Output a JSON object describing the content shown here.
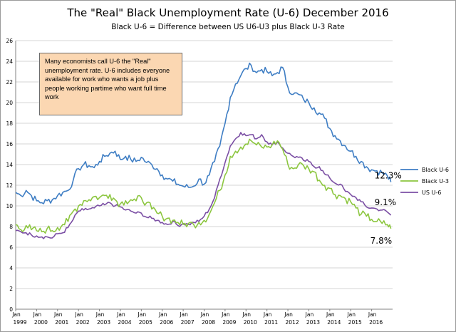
{
  "chart_data": {
    "type": "line",
    "title": "The \"Real\" Black Unemployment Rate (U-6) December 2016",
    "subtitle": "Black U-6  = Difference between US U6-U3 plus Black U-3 Rate",
    "annotation": "Many economists call U-6 the \"Real\" unemployment rate. U-6 includes everyone available for work who wants a job plus people working partime who want full time work",
    "ylim": [
      0,
      26
    ],
    "y_ticks": [
      0,
      2,
      4,
      6,
      8,
      10,
      12,
      14,
      16,
      18,
      20,
      22,
      24,
      26
    ],
    "x_range": [
      1999,
      2017
    ],
    "x_ticks": [
      {
        "month": "Jan",
        "year": "1999"
      },
      {
        "month": "Jan",
        "year": "2000"
      },
      {
        "month": "Jan",
        "year": "2001"
      },
      {
        "month": "Jan",
        "year": "2002"
      },
      {
        "month": "Jan",
        "year": "2003"
      },
      {
        "month": "Jan",
        "year": "2004"
      },
      {
        "month": "Jan",
        "year": "2005"
      },
      {
        "month": "Jan",
        "year": "2006"
      },
      {
        "month": "Jan",
        "year": "2007"
      },
      {
        "month": "Jan",
        "year": "2008"
      },
      {
        "month": "Jan",
        "year": "2009"
      },
      {
        "month": "Jan",
        "year": "2010"
      },
      {
        "month": "Jan",
        "year": "2011"
      },
      {
        "month": "Jan",
        "year": "2012"
      },
      {
        "month": "Jan",
        "year": "2013"
      },
      {
        "month": "Jan",
        "year": "2014"
      },
      {
        "month": "Jan",
        "year": "2015"
      },
      {
        "month": "Jan",
        "year": "2016"
      }
    ],
    "grid": true,
    "legend_position": "right",
    "series": [
      {
        "name": "Black U-6",
        "color": "#3f7ec4",
        "end_label": "12.3%",
        "x": [
          1999.0,
          1999.25,
          1999.5,
          1999.75,
          2000.0,
          2000.25,
          2000.5,
          2000.75,
          2001.0,
          2001.25,
          2001.5,
          2001.75,
          2002.0,
          2002.25,
          2002.5,
          2002.75,
          2003.0,
          2003.25,
          2003.5,
          2003.75,
          2004.0,
          2004.25,
          2004.5,
          2004.75,
          2005.0,
          2005.25,
          2005.5,
          2005.75,
          2006.0,
          2006.25,
          2006.5,
          2006.75,
          2007.0,
          2007.25,
          2007.5,
          2007.75,
          2008.0,
          2008.25,
          2008.5,
          2008.75,
          2009.0,
          2009.25,
          2009.5,
          2009.75,
          2010.0,
          2010.25,
          2010.5,
          2010.75,
          2011.0,
          2011.25,
          2011.5,
          2011.75,
          2012.0,
          2012.25,
          2012.5,
          2012.75,
          2013.0,
          2013.25,
          2013.5,
          2013.75,
          2014.0,
          2014.25,
          2014.5,
          2014.75,
          2015.0,
          2015.25,
          2015.5,
          2015.75,
          2016.0,
          2016.25,
          2016.5,
          2016.75,
          2016.92
        ],
        "y": [
          11.3,
          11.0,
          11.5,
          11.0,
          10.5,
          10.3,
          10.5,
          10.6,
          11.0,
          11.3,
          11.5,
          12.5,
          13.6,
          14.0,
          13.9,
          13.7,
          14.3,
          14.8,
          15.1,
          15.3,
          14.5,
          14.8,
          14.5,
          14.3,
          14.7,
          14.2,
          14.0,
          13.6,
          13.0,
          12.6,
          12.4,
          12.1,
          11.9,
          11.8,
          11.9,
          12.6,
          12.1,
          13.0,
          14.3,
          15.8,
          18.0,
          20.5,
          21.8,
          22.6,
          23.3,
          23.6,
          22.9,
          23.2,
          23.0,
          22.6,
          22.9,
          23.4,
          21.5,
          20.8,
          20.8,
          20.3,
          20.0,
          19.5,
          19.0,
          18.5,
          17.5,
          16.8,
          16.3,
          15.8,
          15.3,
          14.8,
          14.3,
          13.8,
          13.5,
          13.4,
          13.2,
          12.9,
          12.3
        ]
      },
      {
        "name": "Black U-3",
        "color": "#8cc63f",
        "end_label": "7.8%",
        "x": [
          1999.0,
          1999.25,
          1999.5,
          1999.75,
          2000.0,
          2000.25,
          2000.5,
          2000.75,
          2001.0,
          2001.25,
          2001.5,
          2001.75,
          2002.0,
          2002.25,
          2002.5,
          2002.75,
          2003.0,
          2003.25,
          2003.5,
          2003.75,
          2004.0,
          2004.25,
          2004.5,
          2004.75,
          2005.0,
          2005.25,
          2005.5,
          2005.75,
          2006.0,
          2006.25,
          2006.5,
          2006.75,
          2007.0,
          2007.25,
          2007.5,
          2007.75,
          2008.0,
          2008.25,
          2008.5,
          2008.75,
          2009.0,
          2009.25,
          2009.5,
          2009.75,
          2010.0,
          2010.25,
          2010.5,
          2010.75,
          2011.0,
          2011.25,
          2011.5,
          2011.75,
          2012.0,
          2012.25,
          2012.5,
          2012.75,
          2013.0,
          2013.25,
          2013.5,
          2013.75,
          2014.0,
          2014.25,
          2014.5,
          2014.75,
          2015.0,
          2015.25,
          2015.5,
          2015.75,
          2016.0,
          2016.25,
          2016.5,
          2016.75,
          2016.92
        ],
        "y": [
          8.2,
          7.7,
          8.1,
          7.7,
          7.6,
          7.5,
          7.8,
          7.6,
          7.9,
          8.2,
          8.5,
          9.5,
          10.0,
          10.5,
          10.6,
          10.9,
          10.8,
          11.0,
          11.1,
          10.6,
          10.2,
          10.5,
          10.6,
          10.5,
          10.8,
          10.3,
          9.7,
          9.3,
          9.0,
          8.8,
          8.6,
          8.4,
          8.2,
          8.3,
          8.2,
          8.4,
          8.6,
          9.2,
          10.3,
          11.5,
          13.0,
          14.8,
          15.3,
          15.7,
          16.0,
          16.3,
          15.9,
          15.7,
          15.7,
          15.9,
          16.3,
          15.5,
          14.0,
          13.6,
          14.0,
          13.9,
          13.6,
          13.3,
          12.5,
          12.0,
          11.7,
          11.1,
          11.0,
          10.7,
          10.4,
          9.8,
          9.2,
          9.0,
          8.7,
          8.5,
          8.3,
          8.2,
          7.8
        ]
      },
      {
        "name": "US U-6",
        "color": "#7b4fa4",
        "end_label": "9.1%",
        "x": [
          1999.0,
          1999.25,
          1999.5,
          1999.75,
          2000.0,
          2000.25,
          2000.5,
          2000.75,
          2001.0,
          2001.25,
          2001.5,
          2001.75,
          2002.0,
          2002.25,
          2002.5,
          2002.75,
          2003.0,
          2003.25,
          2003.5,
          2003.75,
          2004.0,
          2004.25,
          2004.5,
          2004.75,
          2005.0,
          2005.25,
          2005.5,
          2005.75,
          2006.0,
          2006.25,
          2006.5,
          2006.75,
          2007.0,
          2007.25,
          2007.5,
          2007.75,
          2008.0,
          2008.25,
          2008.5,
          2008.75,
          2009.0,
          2009.25,
          2009.5,
          2009.75,
          2010.0,
          2010.25,
          2010.5,
          2010.75,
          2011.0,
          2011.25,
          2011.5,
          2011.75,
          2012.0,
          2012.25,
          2012.5,
          2012.75,
          2013.0,
          2013.25,
          2013.5,
          2013.75,
          2014.0,
          2014.25,
          2014.5,
          2014.75,
          2015.0,
          2015.25,
          2015.5,
          2015.75,
          2016.0,
          2016.25,
          2016.5,
          2016.75,
          2016.92
        ],
        "y": [
          7.6,
          7.5,
          7.4,
          7.2,
          7.1,
          7.0,
          7.0,
          6.9,
          7.3,
          7.4,
          7.9,
          8.7,
          9.5,
          9.6,
          9.7,
          9.8,
          10.0,
          10.1,
          10.3,
          10.0,
          9.9,
          9.6,
          9.5,
          9.3,
          9.3,
          8.9,
          8.8,
          8.6,
          8.4,
          8.2,
          8.5,
          8.1,
          8.3,
          8.2,
          8.4,
          8.5,
          9.0,
          9.7,
          10.8,
          12.6,
          14.2,
          15.8,
          16.5,
          17.1,
          16.8,
          16.9,
          16.5,
          16.9,
          16.2,
          15.9,
          16.2,
          15.6,
          15.1,
          14.8,
          14.7,
          14.4,
          14.3,
          13.8,
          13.8,
          13.1,
          12.7,
          12.2,
          12.1,
          11.4,
          11.1,
          10.8,
          10.4,
          9.9,
          9.8,
          9.7,
          9.6,
          9.4,
          9.1
        ]
      }
    ]
  }
}
